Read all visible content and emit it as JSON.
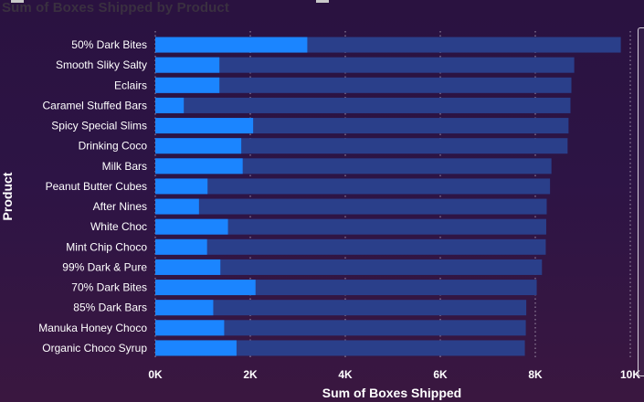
{
  "chart_data": {
    "type": "bar",
    "orientation": "horizontal",
    "title": "Sum of Boxes Shipped by Product",
    "xlabel": "Sum of Boxes Shipped",
    "ylabel": "Product",
    "xlim": [
      0,
      10000
    ],
    "x_ticks": [
      "0K",
      "2K",
      "4K",
      "6K",
      "8K",
      "10K"
    ],
    "grid": "vertical dotted",
    "categories": [
      "50% Dark Bites",
      "Smooth Sliky Salty",
      "Eclairs",
      "Caramel Stuffed Bars",
      "Spicy Special Slims",
      "Drinking Coco",
      "Milk Bars",
      "Peanut Butter Cubes",
      "After Nines",
      "White Choc",
      "Mint Chip Choco",
      "99% Dark & Pure",
      "70% Dark Bites",
      "85% Dark Bars",
      "Manuka Honey Choco",
      "Organic Choco Syrup"
    ],
    "series": [
      {
        "color": "#2a3f8a",
        "values": [
          9800,
          8820,
          8760,
          8740,
          8700,
          8680,
          8340,
          8310,
          8240,
          8230,
          8220,
          8140,
          8030,
          7810,
          7800,
          7780
        ]
      },
      {
        "color": "#1b85ff",
        "values": [
          3200,
          1350,
          1350,
          600,
          2060,
          1810,
          1840,
          1100,
          920,
          1530,
          1090,
          1370,
          2110,
          1220,
          1450,
          1710
        ]
      }
    ]
  },
  "colors": {
    "background": "#2d1445",
    "track": "#2a3f8a",
    "highlight": "#1b85ff",
    "gridline": "#c8c0d0"
  }
}
